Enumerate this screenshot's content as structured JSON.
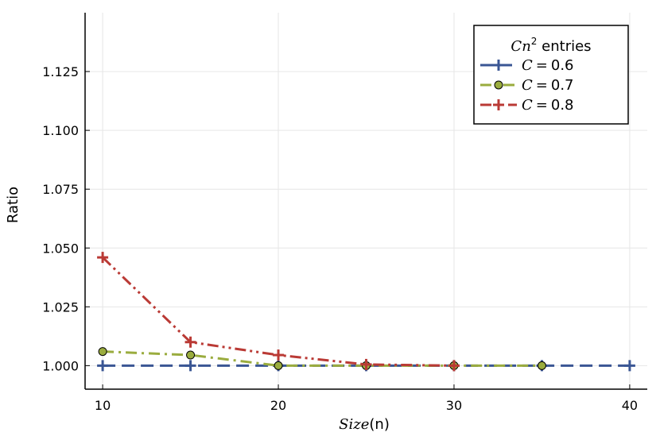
{
  "chart_data": {
    "type": "line",
    "xlabel": {
      "italic": "Size",
      "rest": "(n)"
    },
    "ylabel": "Ratio",
    "xlim": [
      9,
      41
    ],
    "ylim": [
      0.99,
      1.15
    ],
    "x_ticks": [
      10,
      20,
      30,
      40
    ],
    "x_tick_labels": [
      "10",
      "20",
      "30",
      "40"
    ],
    "y_ticks": [
      1.0,
      1.025,
      1.05,
      1.075,
      1.1,
      1.125
    ],
    "y_tick_labels": [
      "1.000",
      "1.025",
      "1.050",
      "1.075",
      "1.100",
      "1.125"
    ],
    "grid": true,
    "legend": {
      "title_math": "Cn",
      "title_sup": "2",
      "title_rest": " entries",
      "placement": "top-right"
    },
    "series": [
      {
        "name_math": "C",
        "name_op": "=",
        "name_val": "0.6",
        "color": "#3a5694",
        "dash": "dashed",
        "marker": "plus",
        "x": [
          10,
          15,
          20,
          25,
          30,
          35,
          40
        ],
        "y": [
          1.0,
          1.0,
          1.0,
          1.0,
          1.0,
          1.0,
          1.0
        ]
      },
      {
        "name_math": "C",
        "name_op": "=",
        "name_val": "0.7",
        "color": "#9aac3e",
        "dash": "dashdot",
        "marker": "circle",
        "x": [
          10,
          15,
          20,
          25,
          30,
          35
        ],
        "y": [
          1.006,
          1.0045,
          1.0,
          1.0,
          1.0,
          1.0
        ]
      },
      {
        "name_math": "C",
        "name_op": "=",
        "name_val": "0.8",
        "color": "#ba3a35",
        "dash": "dashdotdot",
        "marker": "plus",
        "x": [
          10,
          15,
          20,
          25,
          30
        ],
        "y": [
          1.046,
          1.01,
          1.0045,
          1.0005,
          1.0
        ]
      }
    ]
  }
}
